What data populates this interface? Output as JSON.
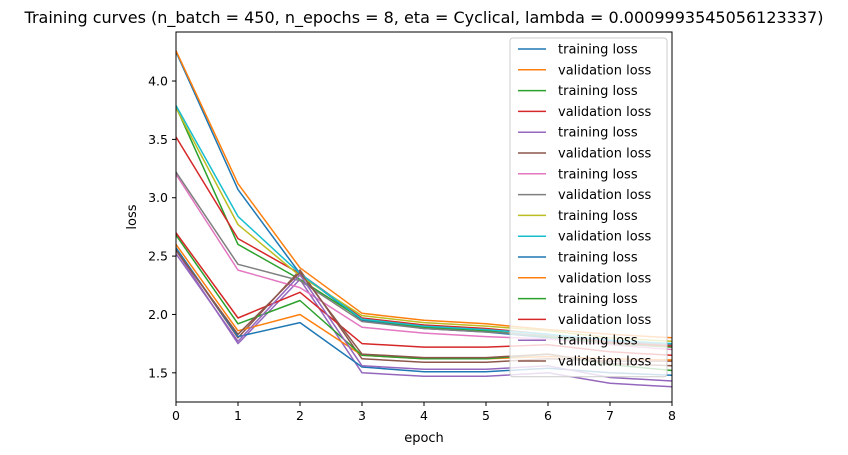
{
  "chart_data": {
    "type": "line",
    "title": "Training curves (n_batch = 450, n_epochs = 8, eta = Cyclical, lambda = 0.0009993545056123337)",
    "xlabel": "epoch",
    "ylabel": "loss",
    "xlim": [
      0,
      8
    ],
    "ylim": [
      1.25,
      4.42
    ],
    "xticks": [
      "0",
      "1",
      "2",
      "3",
      "4",
      "5",
      "6",
      "7",
      "8"
    ],
    "yticks": [
      "1.5",
      "2.0",
      "2.5",
      "3.0",
      "3.5",
      "4.0"
    ],
    "grid": false,
    "legend_position": "top-right",
    "x": [
      0,
      1,
      2,
      3,
      4,
      5,
      6,
      7,
      8
    ],
    "series": [
      {
        "name": "training loss",
        "color": "#1f77b4",
        "values": [
          4.25,
          3.07,
          2.35,
          1.95,
          1.88,
          1.85,
          1.8,
          1.77,
          1.74
        ]
      },
      {
        "name": "validation loss",
        "color": "#ff7f0e",
        "values": [
          4.26,
          3.12,
          2.4,
          2.01,
          1.95,
          1.92,
          1.87,
          1.83,
          1.8
        ]
      },
      {
        "name": "training loss",
        "color": "#2ca02c",
        "values": [
          3.78,
          2.6,
          2.3,
          1.96,
          1.89,
          1.86,
          1.81,
          1.75,
          1.72
        ]
      },
      {
        "name": "validation loss",
        "color": "#d62728",
        "values": [
          3.52,
          2.65,
          2.35,
          1.97,
          1.91,
          1.88,
          1.83,
          1.76,
          1.73
        ]
      },
      {
        "name": "training loss",
        "color": "#9467bd",
        "values": [
          2.55,
          1.75,
          2.3,
          1.5,
          1.47,
          1.47,
          1.5,
          1.41,
          1.38
        ]
      },
      {
        "name": "validation loss",
        "color": "#8c564b",
        "values": [
          2.57,
          1.8,
          2.38,
          1.62,
          1.59,
          1.59,
          1.62,
          1.6,
          1.6
        ]
      },
      {
        "name": "training loss",
        "color": "#e377c2",
        "values": [
          3.2,
          2.38,
          2.23,
          1.89,
          1.84,
          1.81,
          1.79,
          1.74,
          1.7
        ]
      },
      {
        "name": "validation loss",
        "color": "#7f7f7f",
        "values": [
          3.22,
          2.43,
          2.29,
          1.94,
          1.88,
          1.85,
          1.82,
          1.78,
          1.74
        ]
      },
      {
        "name": "training loss",
        "color": "#bcbd22",
        "values": [
          3.77,
          2.77,
          2.33,
          1.99,
          1.93,
          1.9,
          1.86,
          1.8,
          1.77
        ]
      },
      {
        "name": "validation loss",
        "color": "#17becf",
        "values": [
          3.79,
          2.84,
          2.35,
          1.96,
          1.9,
          1.87,
          1.83,
          1.78,
          1.75
        ]
      },
      {
        "name": "training loss",
        "color": "#1f77b4",
        "values": [
          2.57,
          1.81,
          1.93,
          1.55,
          1.51,
          1.51,
          1.54,
          1.5,
          1.48
        ]
      },
      {
        "name": "validation loss",
        "color": "#ff7f0e",
        "values": [
          2.6,
          1.86,
          2.0,
          1.65,
          1.62,
          1.62,
          1.64,
          1.62,
          1.61
        ]
      },
      {
        "name": "training loss",
        "color": "#2ca02c",
        "values": [
          2.68,
          1.92,
          2.12,
          1.65,
          1.62,
          1.62,
          1.66,
          1.57,
          1.52
        ]
      },
      {
        "name": "validation loss",
        "color": "#d62728",
        "values": [
          2.7,
          1.97,
          2.19,
          1.75,
          1.72,
          1.72,
          1.74,
          1.68,
          1.65
        ]
      },
      {
        "name": "training loss",
        "color": "#9467bd",
        "values": [
          2.52,
          1.77,
          2.34,
          1.56,
          1.53,
          1.53,
          1.56,
          1.46,
          1.43
        ]
      },
      {
        "name": "validation loss",
        "color": "#8c564b",
        "values": [
          2.55,
          1.83,
          2.36,
          1.66,
          1.63,
          1.63,
          1.66,
          1.58,
          1.56
        ]
      }
    ]
  }
}
